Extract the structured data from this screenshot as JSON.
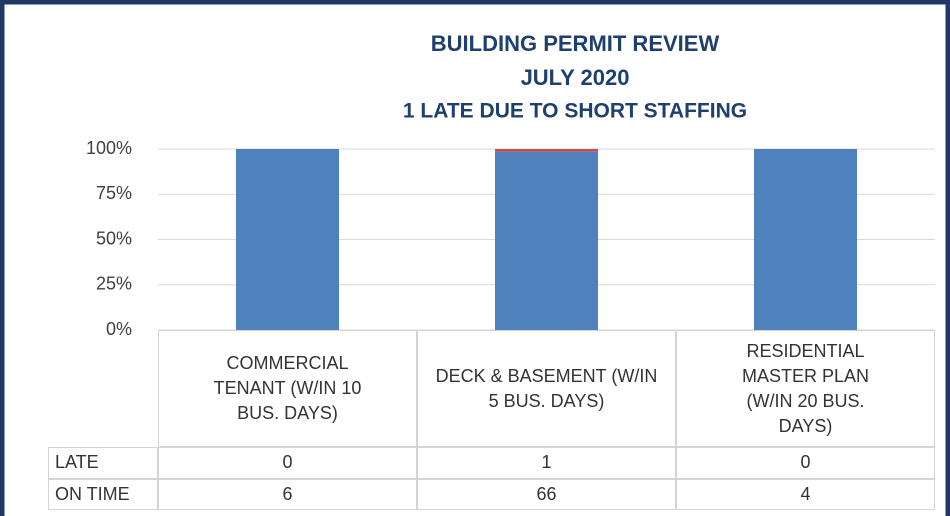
{
  "chart_data": {
    "type": "bar",
    "stacked": "percent",
    "title": "BUILDING PERMIT REVIEW",
    "subtitle": "JULY 2020",
    "annotation": "1 LATE DUE TO SHORT STAFFING",
    "categories": [
      "COMMERCIAL TENANT (W/IN 10 BUS. DAYS)",
      "DECK & BASEMENT (W/IN 5 BUS. DAYS)",
      "RESIDENTIAL MASTER PLAN (W/IN 20 BUS. DAYS)"
    ],
    "series": [
      {
        "name": "LATE",
        "color": "#c0504d",
        "values": [
          0,
          1,
          0
        ]
      },
      {
        "name": "ON TIME",
        "color": "#4f81bd",
        "values": [
          6,
          66,
          4
        ]
      }
    ],
    "ylim": [
      0,
      100
    ],
    "yticks": [
      {
        "value": 0,
        "label": "0%"
      },
      {
        "value": 25,
        "label": "25%"
      },
      {
        "value": 50,
        "label": "50%"
      },
      {
        "value": 75,
        "label": "75%"
      },
      {
        "value": 100,
        "label": "100%"
      }
    ],
    "grid": true
  }
}
